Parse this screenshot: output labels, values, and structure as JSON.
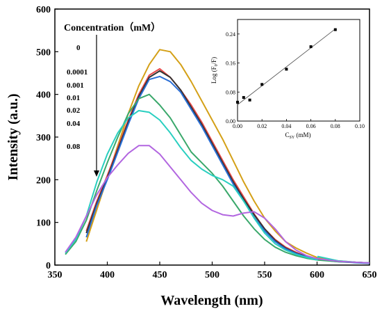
{
  "chart_data": [
    {
      "type": "line",
      "xlabel": "Wavelength (nm)",
      "ylabel": "Intensity (a.u.)",
      "xlim": [
        350,
        650
      ],
      "ylim": [
        0,
        600
      ],
      "xticks": [
        350,
        400,
        450,
        500,
        550,
        600,
        650
      ],
      "yticks": [
        0,
        100,
        200,
        300,
        400,
        500,
        600
      ],
      "legend_title": "Concentration（mM）",
      "legend_labels": [
        "0",
        "0.0001",
        "0.001",
        "0.01",
        "0.02",
        "0.04",
        "0.08"
      ],
      "series": [
        {
          "name": "0",
          "color": "#d4a017",
          "x": [
            380,
            390,
            400,
            410,
            420,
            430,
            440,
            450,
            460,
            470,
            480,
            490,
            500,
            510,
            520,
            530,
            540,
            550,
            560,
            570,
            580,
            590,
            600,
            620,
            640,
            650
          ],
          "y": [
            55,
            130,
            205,
            280,
            355,
            420,
            470,
            505,
            500,
            470,
            430,
            385,
            340,
            295,
            245,
            195,
            150,
            110,
            80,
            55,
            40,
            28,
            18,
            10,
            6,
            5
          ]
        },
        {
          "name": "0.0001",
          "color": "#e84a4a",
          "x": [
            380,
            390,
            400,
            410,
            420,
            430,
            440,
            450,
            460,
            470,
            480,
            490,
            500,
            510,
            520,
            530,
            540,
            550,
            560,
            570,
            580,
            590,
            600,
            620,
            640,
            650
          ],
          "y": [
            80,
            150,
            210,
            275,
            340,
            400,
            445,
            460,
            440,
            410,
            375,
            335,
            290,
            245,
            200,
            160,
            120,
            85,
            60,
            42,
            30,
            20,
            15,
            9,
            6,
            5
          ]
        },
        {
          "name": "0.001",
          "color": "#333333",
          "x": [
            380,
            390,
            400,
            410,
            420,
            430,
            440,
            450,
            460,
            470,
            480,
            490,
            500,
            510,
            520,
            530,
            540,
            550,
            560,
            570,
            580,
            590,
            600,
            620,
            640,
            650
          ],
          "y": [
            75,
            145,
            205,
            270,
            335,
            395,
            440,
            455,
            440,
            410,
            370,
            330,
            285,
            240,
            195,
            155,
            118,
            85,
            58,
            40,
            28,
            20,
            14,
            9,
            6,
            5
          ]
        },
        {
          "name": "0.01",
          "color": "#2b6fd6",
          "x": [
            380,
            390,
            400,
            410,
            420,
            430,
            440,
            450,
            460,
            470,
            480,
            490,
            500,
            510,
            520,
            530,
            540,
            550,
            560,
            570,
            580,
            590,
            600,
            620,
            640,
            650
          ],
          "y": [
            65,
            140,
            200,
            265,
            330,
            390,
            435,
            442,
            430,
            405,
            365,
            325,
            280,
            235,
            190,
            150,
            112,
            80,
            55,
            38,
            27,
            19,
            13,
            8,
            5,
            4
          ]
        },
        {
          "name": "0.02",
          "color": "#3aa86b",
          "x": [
            360,
            370,
            380,
            390,
            400,
            410,
            420,
            430,
            440,
            450,
            460,
            470,
            480,
            490,
            500,
            510,
            520,
            530,
            540,
            550,
            560,
            570,
            580,
            590,
            600,
            620,
            640,
            650
          ],
          "y": [
            25,
            55,
            105,
            175,
            240,
            300,
            355,
            390,
            400,
            375,
            345,
            305,
            265,
            240,
            215,
            185,
            150,
            115,
            85,
            60,
            42,
            30,
            22,
            16,
            12,
            8,
            6,
            5
          ]
        },
        {
          "name": "0.04",
          "color": "#29cfc0",
          "x": [
            360,
            370,
            380,
            390,
            400,
            410,
            420,
            430,
            440,
            450,
            460,
            470,
            480,
            490,
            500,
            510,
            520,
            530,
            540,
            550,
            560,
            570,
            580,
            590,
            600,
            601,
            620,
            640,
            650
          ],
          "y": [
            28,
            60,
            115,
            195,
            260,
            310,
            345,
            362,
            358,
            340,
            310,
            275,
            245,
            225,
            210,
            200,
            185,
            150,
            110,
            75,
            50,
            35,
            25,
            18,
            12,
            20,
            10,
            6,
            5
          ]
        },
        {
          "name": "0.08",
          "color": "#b266e0",
          "x": [
            360,
            370,
            380,
            390,
            400,
            410,
            420,
            430,
            440,
            450,
            460,
            470,
            480,
            490,
            500,
            510,
            520,
            530,
            540,
            550,
            560,
            570,
            580,
            590,
            600,
            620,
            640,
            650
          ],
          "y": [
            30,
            65,
            115,
            165,
            205,
            235,
            262,
            280,
            280,
            260,
            230,
            200,
            170,
            145,
            128,
            118,
            115,
            122,
            125,
            110,
            85,
            55,
            35,
            22,
            15,
            9,
            6,
            5
          ]
        }
      ]
    },
    {
      "type": "scatter",
      "xlabel": "C_SY (mM)",
      "ylabel": "Log (F0/F)",
      "xlim": [
        0.0,
        0.1
      ],
      "ylim": [
        0.0,
        0.28
      ],
      "xticks": [
        "0.00",
        "0.02",
        "0.04",
        "0.06",
        "0.08",
        "0.10"
      ],
      "yticks": [
        "0.00",
        "0.08",
        "0.16",
        "0.24"
      ],
      "points": [
        {
          "x": 0.0,
          "y": 0.052
        },
        {
          "x": 0.005,
          "y": 0.065
        },
        {
          "x": 0.01,
          "y": 0.058
        },
        {
          "x": 0.02,
          "y": 0.101
        },
        {
          "x": 0.04,
          "y": 0.143
        },
        {
          "x": 0.06,
          "y": 0.205
        },
        {
          "x": 0.08,
          "y": 0.252
        }
      ],
      "fit": {
        "x": [
          0.0,
          0.08
        ],
        "y": [
          0.045,
          0.254
        ]
      }
    }
  ]
}
